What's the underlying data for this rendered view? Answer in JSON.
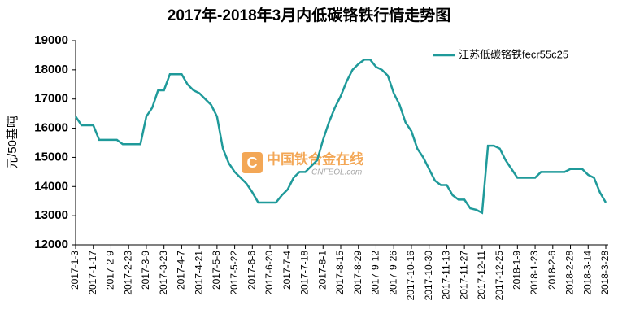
{
  "chart_data": {
    "type": "line",
    "title": "2017年-2018年3月内低碳铬铁行情走势图",
    "y_label": "元/50基吨",
    "watermark": "中国铁合金在线",
    "watermark_url": "CNFEOL.com",
    "legend": "top-right",
    "categories": [
      "2017-1-3",
      null,
      null,
      "2017-1-17",
      null,
      null,
      "2017-2-9",
      null,
      null,
      "2017-2-23",
      null,
      null,
      "2017-3-9",
      null,
      null,
      "2017-3-23",
      null,
      null,
      "2017-4-7",
      null,
      null,
      "2017-4-21",
      null,
      null,
      "2017-5-8",
      null,
      null,
      "2017-5-22",
      null,
      null,
      "2017-6-6",
      null,
      null,
      "2017-6-20",
      null,
      null,
      "2017-7-4",
      null,
      null,
      "2017-7-18",
      null,
      null,
      "2017-8-1",
      null,
      null,
      "2017-8-15",
      null,
      null,
      "2017-8-29",
      null,
      null,
      "2017-9-12",
      null,
      null,
      "2017-9-26",
      null,
      null,
      "2017-10-16",
      null,
      null,
      "2017-10-30",
      null,
      null,
      "2017-11-13",
      null,
      null,
      "2017-11-27",
      null,
      null,
      "2017-12-11",
      null,
      null,
      "2017-12-25",
      null,
      null,
      "2018-1-9",
      null,
      null,
      "2018-1-23",
      null,
      null,
      "2018-2-6",
      null,
      null,
      "2018-2-28",
      null,
      null,
      "2018-3-14",
      null,
      null,
      "2018-3-28"
    ],
    "series": [
      {
        "name": "江苏低碳铬铁fecr55c25",
        "color": "#1f9a9a",
        "values": [
          16400,
          16100,
          16100,
          16100,
          15600,
          15600,
          15600,
          15600,
          15450,
          15450,
          15450,
          15450,
          16400,
          16700,
          17300,
          17300,
          17850,
          17850,
          17850,
          17500,
          17300,
          17200,
          17000,
          16800,
          16400,
          15300,
          14800,
          14500,
          14300,
          14100,
          13800,
          13450,
          13450,
          13450,
          13450,
          13700,
          13900,
          14300,
          14500,
          14500,
          14700,
          14900,
          15600,
          16200,
          16700,
          17100,
          17600,
          18000,
          18200,
          18350,
          18350,
          18100,
          18000,
          17800,
          17200,
          16800,
          16200,
          15900,
          15300,
          15000,
          14600,
          14200,
          14050,
          14050,
          13700,
          13550,
          13550,
          13250,
          13200,
          13100,
          15400,
          15400,
          15300,
          14900,
          14600,
          14300,
          14300,
          14300,
          14300,
          14500,
          14500,
          14500,
          14500,
          14500,
          14600,
          14600,
          14600,
          14400,
          14300,
          13800,
          13450
        ]
      }
    ],
    "ylim": [
      12000,
      19000
    ],
    "yticks": [
      12000,
      13000,
      14000,
      15000,
      16000,
      17000,
      18000,
      19000
    ]
  }
}
